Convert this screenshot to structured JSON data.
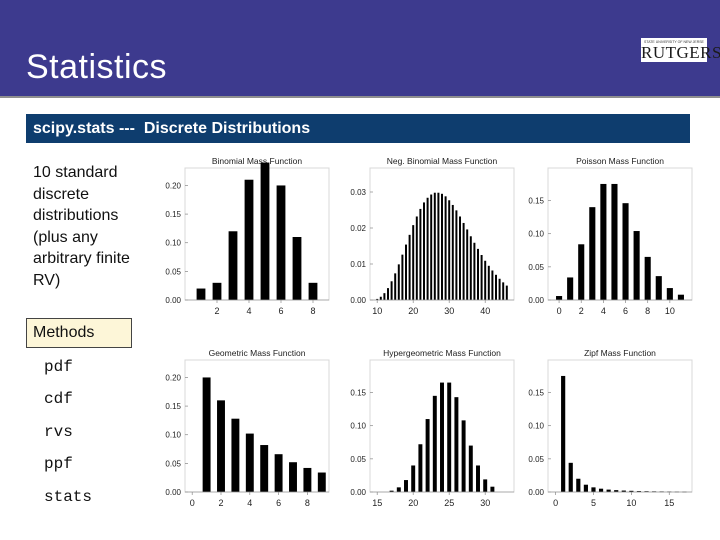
{
  "header": {
    "title": "Statistics",
    "logo_small": "STATE UNIVERSITY OF NEW JERSEY",
    "logo_main": "RUTGERS"
  },
  "subtitle": "scipy.stats ---  Discrete Distributions",
  "description": "10 standard discrete distributions (plus any arbitrary finite RV)",
  "methods": {
    "label": "Methods",
    "items": [
      "pdf",
      "cdf",
      "rvs",
      "ppf",
      "stats"
    ]
  },
  "colors": {
    "header_bg": "#3d3a8e",
    "subtitle_bg": "#0e3d6e",
    "methods_bg": "#fdf6d8",
    "bar": "#000000"
  },
  "chart_data": [
    {
      "type": "bar",
      "title": "Binomial Mass Function",
      "x": [
        1,
        2,
        3,
        4,
        5,
        6,
        7,
        8
      ],
      "values": [
        0.02,
        0.03,
        0.12,
        0.21,
        0.24,
        0.2,
        0.11,
        0.03
      ],
      "xticks": [
        2,
        4,
        6,
        8
      ],
      "yticks": [
        "0.00",
        "0.05",
        "0.10",
        "0.15",
        "0.20"
      ],
      "xlim": [
        0,
        9
      ],
      "ylim": [
        0,
        0.22
      ]
    },
    {
      "type": "bar",
      "title": "Neg. Binomial Mass Function",
      "x": [
        10,
        11,
        12,
        13,
        14,
        15,
        16,
        17,
        18,
        19,
        20,
        21,
        22,
        23,
        24,
        25,
        26,
        27,
        28,
        29,
        30,
        31,
        32,
        33,
        34,
        35,
        36,
        37,
        38,
        39,
        40,
        41,
        42,
        43,
        44,
        45,
        46
      ],
      "values": [
        0.0003,
        0.0009,
        0.0019,
        0.0033,
        0.0052,
        0.0074,
        0.0099,
        0.0126,
        0.0154,
        0.0181,
        0.0208,
        0.0232,
        0.0253,
        0.0271,
        0.0284,
        0.0293,
        0.0298,
        0.0298,
        0.0295,
        0.0288,
        0.0277,
        0.0264,
        0.0249,
        0.0232,
        0.0214,
        0.0196,
        0.0177,
        0.0159,
        0.0142,
        0.0125,
        0.0109,
        0.0095,
        0.0082,
        0.007,
        0.0059,
        0.0049,
        0.004
      ],
      "xticks": [
        10,
        20,
        30,
        40
      ],
      "yticks": [
        "0.00",
        "0.01",
        "0.02",
        "0.03"
      ],
      "xlim": [
        8,
        48
      ],
      "ylim": [
        0,
        0.035
      ]
    },
    {
      "type": "bar",
      "title": "Poisson Mass Function",
      "x": [
        0,
        1,
        2,
        3,
        4,
        5,
        6,
        7,
        8,
        9,
        10,
        11
      ],
      "values": [
        0.006,
        0.034,
        0.084,
        0.14,
        0.175,
        0.175,
        0.146,
        0.104,
        0.065,
        0.036,
        0.018,
        0.008
      ],
      "xticks": [
        0,
        2,
        4,
        6,
        8,
        10
      ],
      "yticks": [
        "0.00",
        "0.05",
        "0.10",
        "0.15"
      ],
      "xlim": [
        -1,
        12
      ],
      "ylim": [
        0,
        0.19
      ]
    },
    {
      "type": "bar",
      "title": "Geometric Mass Function",
      "x": [
        1,
        2,
        3,
        4,
        5,
        6,
        7,
        8,
        9
      ],
      "values": [
        0.2,
        0.16,
        0.128,
        0.102,
        0.082,
        0.066,
        0.052,
        0.042,
        0.034
      ],
      "xticks": [
        0,
        2,
        4,
        6,
        8
      ],
      "yticks": [
        "0.00",
        "0.05",
        "0.10",
        "0.15",
        "0.20"
      ],
      "xlim": [
        -0.5,
        9.5
      ],
      "ylim": [
        0,
        0.22
      ]
    },
    {
      "type": "bar",
      "title": "Hypergeometric Mass Function",
      "x": [
        17,
        18,
        19,
        20,
        21,
        22,
        23,
        24,
        25,
        26,
        27,
        28,
        29,
        30,
        31
      ],
      "values": [
        0.002,
        0.007,
        0.018,
        0.04,
        0.072,
        0.11,
        0.145,
        0.165,
        0.165,
        0.143,
        0.108,
        0.07,
        0.04,
        0.019,
        0.008
      ],
      "xticks": [
        15,
        20,
        25,
        30
      ],
      "yticks": [
        "0.00",
        "0.05",
        "0.10",
        "0.15"
      ],
      "xlim": [
        14,
        34
      ],
      "ylim": [
        0,
        0.19
      ]
    },
    {
      "type": "bar",
      "title": "Zipf Mass Function",
      "x": [
        1,
        2,
        3,
        4,
        5,
        6,
        7,
        8,
        9,
        10,
        11,
        12,
        13,
        14,
        15,
        16,
        17
      ],
      "values": [
        0.175,
        0.044,
        0.02,
        0.011,
        0.007,
        0.005,
        0.0036,
        0.0028,
        0.0022,
        0.0018,
        0.0014,
        0.0012,
        0.001,
        0.0009,
        0.0008,
        0.0007,
        0.0006
      ],
      "xticks": [
        0,
        5,
        10,
        15
      ],
      "yticks": [
        "0.00",
        "0.05",
        "0.10",
        "0.15"
      ],
      "xlim": [
        -1,
        18
      ],
      "ylim": [
        0,
        0.19
      ]
    }
  ]
}
